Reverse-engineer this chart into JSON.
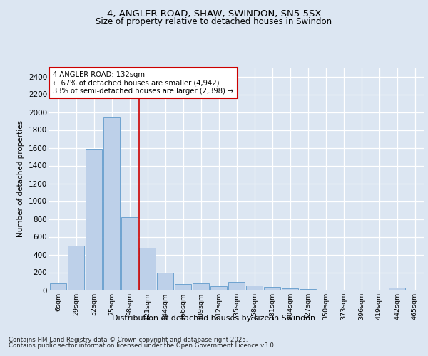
{
  "title1": "4, ANGLER ROAD, SHAW, SWINDON, SN5 5SX",
  "title2": "Size of property relative to detached houses in Swindon",
  "xlabel": "Distribution of detached houses by size in Swindon",
  "ylabel": "Number of detached properties",
  "categories": [
    "6sqm",
    "29sqm",
    "52sqm",
    "75sqm",
    "98sqm",
    "121sqm",
    "144sqm",
    "166sqm",
    "189sqm",
    "212sqm",
    "235sqm",
    "258sqm",
    "281sqm",
    "304sqm",
    "327sqm",
    "350sqm",
    "373sqm",
    "396sqm",
    "419sqm",
    "442sqm",
    "465sqm"
  ],
  "values": [
    75,
    500,
    1590,
    1940,
    820,
    480,
    200,
    65,
    75,
    45,
    90,
    55,
    40,
    20,
    10,
    5,
    5,
    5,
    5,
    25,
    5
  ],
  "bar_color": "#bdd0e9",
  "bar_edge_color": "#6fa3d0",
  "vline_color": "#cc0000",
  "annotation_text": "4 ANGLER ROAD: 132sqm\n← 67% of detached houses are smaller (4,942)\n33% of semi-detached houses are larger (2,398) →",
  "annotation_box_color": "#ffffff",
  "annotation_box_edge": "#cc0000",
  "bg_color": "#dce6f2",
  "plot_bg_color": "#dce6f2",
  "footer1": "Contains HM Land Registry data © Crown copyright and database right 2025.",
  "footer2": "Contains public sector information licensed under the Open Government Licence v3.0.",
  "ylim": [
    0,
    2500
  ],
  "yticks": [
    0,
    200,
    400,
    600,
    800,
    1000,
    1200,
    1400,
    1600,
    1800,
    2000,
    2200,
    2400
  ]
}
